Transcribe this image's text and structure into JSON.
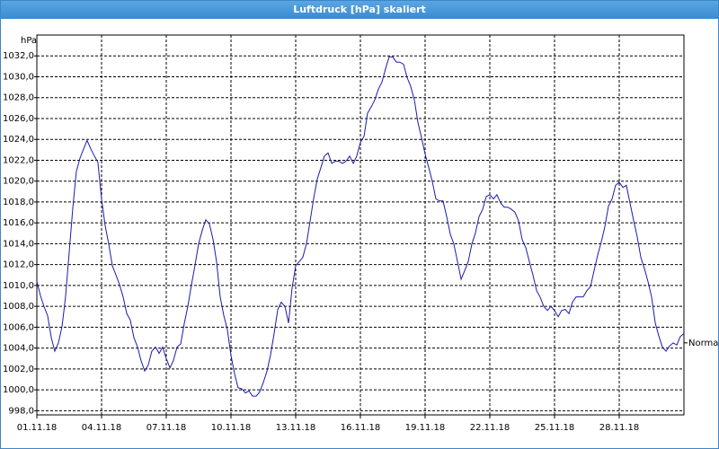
{
  "chart_data": {
    "type": "line",
    "title": "Luftdruck [hPa] skaliert",
    "y_unit": "hPa",
    "color": "#1c1ca8",
    "grid": true,
    "xlim": [
      1,
      31
    ],
    "ylim": [
      997.6,
      1034
    ],
    "xticks": [
      {
        "value": 1,
        "label": "01.11.18"
      },
      {
        "value": 4,
        "label": "04.11.18"
      },
      {
        "value": 7,
        "label": "07.11.18"
      },
      {
        "value": 10,
        "label": "10.11.18"
      },
      {
        "value": 13,
        "label": "13.11.18"
      },
      {
        "value": 16,
        "label": "16.11.18"
      },
      {
        "value": 19,
        "label": "19.11.18"
      },
      {
        "value": 22,
        "label": "22.11.18"
      },
      {
        "value": 25,
        "label": "25.11.18"
      },
      {
        "value": 28,
        "label": "28.11.18"
      }
    ],
    "yticks": [
      {
        "value": 998,
        "label": "998,0"
      },
      {
        "value": 1000,
        "label": "1000,0"
      },
      {
        "value": 1002,
        "label": "1002,0"
      },
      {
        "value": 1004,
        "label": "1004,0"
      },
      {
        "value": 1006,
        "label": "1006,0"
      },
      {
        "value": 1008,
        "label": "1008,0"
      },
      {
        "value": 1010,
        "label": "1010,0"
      },
      {
        "value": 1012,
        "label": "1012,0"
      },
      {
        "value": 1014,
        "label": "1014,0"
      },
      {
        "value": 1016,
        "label": "1016,0"
      },
      {
        "value": 1018,
        "label": "1018,0"
      },
      {
        "value": 1020,
        "label": "1020,0"
      },
      {
        "value": 1022,
        "label": "1022,0"
      },
      {
        "value": 1024,
        "label": "1024,0"
      },
      {
        "value": 1026,
        "label": "1026,0"
      },
      {
        "value": 1028,
        "label": "1028,0"
      },
      {
        "value": 1030,
        "label": "1030,0"
      },
      {
        "value": 1032,
        "label": "1032,0"
      }
    ],
    "annotation": {
      "label": "Normal",
      "value": 1004.5
    },
    "x": [
      1,
      1.17,
      1.33,
      1.5,
      1.67,
      1.83,
      2,
      2.17,
      2.33,
      2.5,
      2.67,
      2.83,
      3,
      3.17,
      3.33,
      3.5,
      3.67,
      3.83,
      4,
      4.17,
      4.33,
      4.5,
      4.67,
      4.83,
      5,
      5.17,
      5.33,
      5.5,
      5.67,
      5.83,
      6,
      6.17,
      6.33,
      6.5,
      6.67,
      6.83,
      7,
      7.17,
      7.33,
      7.5,
      7.67,
      7.83,
      8,
      8.17,
      8.33,
      8.5,
      8.67,
      8.83,
      9,
      9.17,
      9.33,
      9.5,
      9.67,
      9.83,
      10,
      10.17,
      10.33,
      10.5,
      10.67,
      10.83,
      11,
      11.17,
      11.33,
      11.5,
      11.67,
      11.83,
      12,
      12.17,
      12.33,
      12.5,
      12.67,
      12.83,
      13,
      13.17,
      13.33,
      13.5,
      13.67,
      13.83,
      14,
      14.17,
      14.33,
      14.5,
      14.67,
      14.83,
      15,
      15.17,
      15.33,
      15.5,
      15.67,
      15.83,
      16,
      16.17,
      16.33,
      16.5,
      16.67,
      16.83,
      17,
      17.17,
      17.33,
      17.5,
      17.67,
      17.83,
      18,
      18.17,
      18.33,
      18.5,
      18.67,
      18.83,
      19,
      19.17,
      19.33,
      19.5,
      19.67,
      19.83,
      20,
      20.17,
      20.33,
      20.5,
      20.67,
      20.83,
      21,
      21.17,
      21.33,
      21.5,
      21.67,
      21.83,
      22,
      22.17,
      22.33,
      22.5,
      22.67,
      22.83,
      23,
      23.17,
      23.33,
      23.5,
      23.67,
      23.83,
      24,
      24.17,
      24.33,
      24.5,
      24.67,
      24.83,
      25,
      25.17,
      25.33,
      25.5,
      25.67,
      25.83,
      26,
      26.17,
      26.33,
      26.5,
      26.67,
      26.83,
      27,
      27.17,
      27.33,
      27.5,
      27.67,
      27.83,
      28,
      28.17,
      28.33,
      28.5,
      28.67,
      28.83,
      29,
      29.17,
      29.33,
      29.5,
      29.67,
      29.83,
      30,
      30.17,
      30.33,
      30.5,
      30.67,
      30.83,
      31
    ],
    "values": [
      1010.4,
      1009,
      1008,
      1007.1,
      1005,
      1003.7,
      1004.5,
      1006.1,
      1008.9,
      1013.2,
      1017.5,
      1020.9,
      1022.2,
      1023.1,
      1023.9,
      1023.1,
      1022.4,
      1021.8,
      1018.3,
      1015.7,
      1014,
      1011.9,
      1011,
      1010.1,
      1008.9,
      1007.3,
      1006.7,
      1005,
      1004.1,
      1002.8,
      1001.8,
      1002.4,
      1003.7,
      1004.1,
      1003.5,
      1004.1,
      1003,
      1002.1,
      1002.8,
      1004.1,
      1004.4,
      1006.3,
      1008,
      1010.1,
      1011.9,
      1014,
      1015.3,
      1016.3,
      1015.9,
      1014.4,
      1012.3,
      1008.9,
      1007.1,
      1005.8,
      1003.3,
      1001.5,
      1000.2,
      1000.1,
      999.7,
      999.9,
      999.4,
      999.4,
      999.8,
      1000.7,
      1001.8,
      1003.3,
      1005.4,
      1007.7,
      1008.4,
      1008,
      1006.4,
      1009.7,
      1011.9,
      1012.3,
      1012.7,
      1014,
      1016.2,
      1018.3,
      1020.2,
      1021.3,
      1022.4,
      1022.7,
      1021.7,
      1021.9,
      1021.9,
      1021.7,
      1021.9,
      1022.4,
      1021.7,
      1022.4,
      1023.7,
      1024.3,
      1026.5,
      1027.1,
      1027.8,
      1028.8,
      1029.5,
      1030.8,
      1031.9,
      1031.9,
      1031.4,
      1031.4,
      1031.2,
      1029.9,
      1029.1,
      1027.8,
      1025.6,
      1024.2,
      1022.6,
      1021.3,
      1020,
      1018.3,
      1018.1,
      1018.1,
      1016.6,
      1014.9,
      1014,
      1012.3,
      1010.6,
      1011.4,
      1012.3,
      1014,
      1015,
      1016.6,
      1017.3,
      1018.5,
      1018.7,
      1018.3,
      1018.7,
      1017.9,
      1017.5,
      1017.5,
      1017.3,
      1017,
      1016.2,
      1014.4,
      1013.6,
      1012.3,
      1011,
      1009.5,
      1008.9,
      1008,
      1007.6,
      1008,
      1007.6,
      1007,
      1007.6,
      1007.7,
      1007.3,
      1008.4,
      1008.9,
      1008.9,
      1008.9,
      1009.5,
      1009.9,
      1011.4,
      1012.9,
      1014.2,
      1015.6,
      1017.6,
      1018.3,
      1019.6,
      1019.9,
      1019.4,
      1019.6,
      1017.9,
      1016.2,
      1014.7,
      1012.7,
      1011.6,
      1010.4,
      1008.9,
      1006.4,
      1005.2,
      1004.1,
      1003.7,
      1004.2,
      1004.5,
      1004.3,
      1005.1,
      1005.4
    ]
  }
}
